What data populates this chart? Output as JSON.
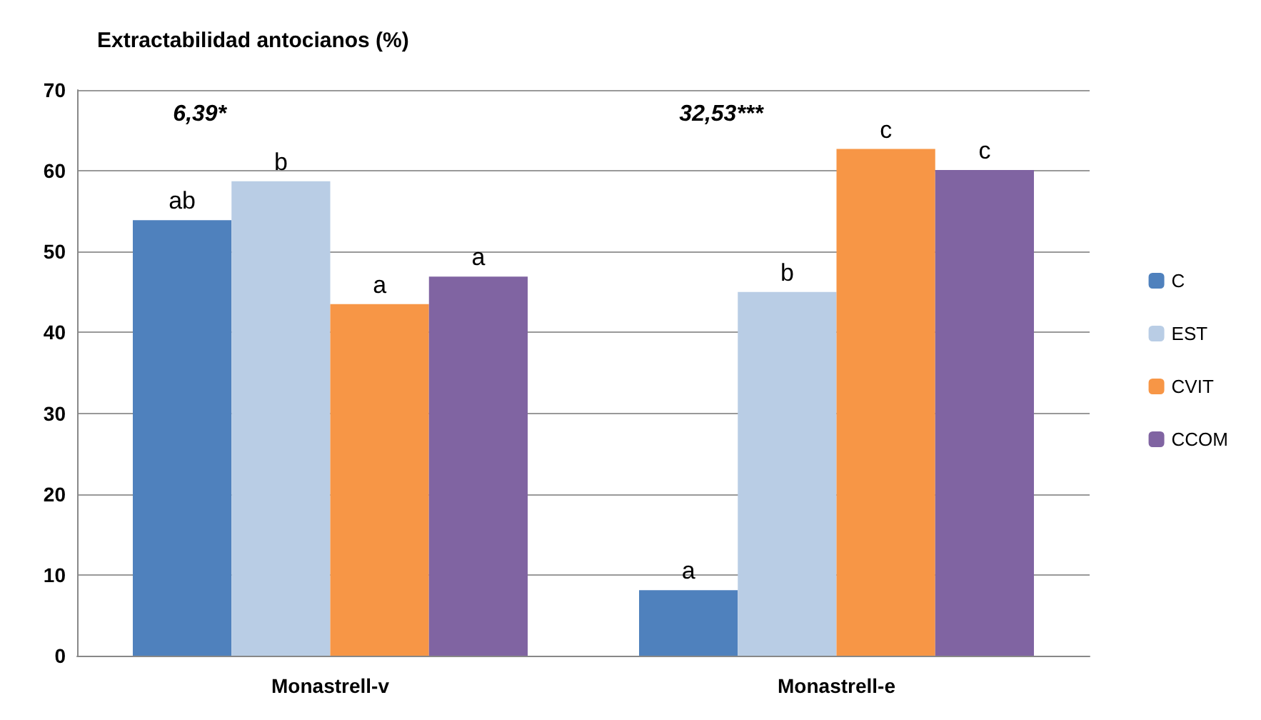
{
  "chart_data": {
    "type": "bar",
    "title": "Extractabilidad antocianos (%)",
    "categories": [
      "Monastrell-v",
      "Monastrell-e"
    ],
    "series": [
      {
        "name": "C",
        "color": "#4f81bd",
        "values": [
          53.9,
          8.1
        ],
        "value_labels": [
          "ab",
          "a"
        ]
      },
      {
        "name": "EST",
        "color": "#b9cde5",
        "values": [
          58.7,
          45.0
        ],
        "value_labels": [
          "b",
          "b"
        ]
      },
      {
        "name": "CVIT",
        "color": "#f79646",
        "values": [
          43.5,
          62.7
        ],
        "value_labels": [
          "a",
          "c"
        ]
      },
      {
        "name": "CCOM",
        "color": "#8064a2",
        "values": [
          46.9,
          60.1
        ],
        "value_labels": [
          "a",
          "c"
        ]
      }
    ],
    "annotations": [
      "6,39*",
      "32,53***"
    ],
    "ylim": [
      0,
      70
    ],
    "yticks": [
      0,
      10,
      20,
      30,
      40,
      50,
      60,
      70
    ],
    "grid": "y",
    "legend": "right"
  }
}
